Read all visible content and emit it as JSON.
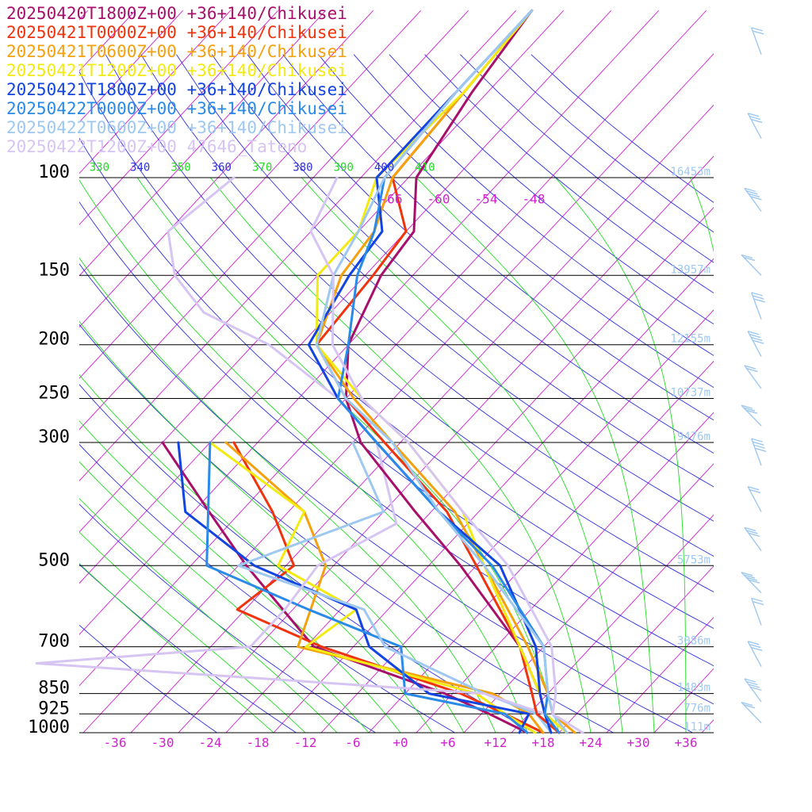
{
  "chart_data": {
    "type": "line",
    "legend": {
      "placement": "top-left",
      "entries": [
        {
          "label": "20250420T1800Z+00 +36+140/Chikusei",
          "color": "#a80f6a"
        },
        {
          "label": "20250421T0000Z+00 +36+140/Chikusei",
          "color": "#f0330c"
        },
        {
          "label": "20250421T0600Z+00 +36+140/Chikusei",
          "color": "#f5a00d"
        },
        {
          "label": "20250421T1200Z+00 +36+140/Chikusei",
          "color": "#f2ea10"
        },
        {
          "label": "20250421T1800Z+00 +36+140/Chikusei",
          "color": "#1244e0"
        },
        {
          "label": "20250422T0000Z+00 +36+140/Chikusei",
          "color": "#2a8ae8"
        },
        {
          "label": "20250422T0600Z+00 +36+140/Chikusei",
          "color": "#9ec8f0"
        },
        {
          "label": "20250422T1200Z+00 47646_Tateno",
          "color": "#d6c4f2"
        }
      ]
    },
    "x_axis": {
      "unit": "degC",
      "tick_values": [
        -36,
        -30,
        -24,
        -18,
        -12,
        -6,
        0,
        6,
        12,
        18,
        24,
        30,
        36
      ],
      "tick_labels": [
        "-36",
        "-30",
        "-24",
        "-18",
        "-12",
        "-6",
        "+0",
        "+6",
        "+12",
        "+18",
        "+24",
        "+30",
        "+36"
      ]
    },
    "y_axis": {
      "unit": "hPa",
      "scale": "log",
      "range": [
        1000,
        100
      ],
      "ticks": [
        {
          "p": 100,
          "label": "100",
          "height": "16453m"
        },
        {
          "p": 150,
          "label": "150",
          "height": "13957m"
        },
        {
          "p": 200,
          "label": "200",
          "height": "12155m"
        },
        {
          "p": 250,
          "label": "250",
          "height": "10737m"
        },
        {
          "p": 300,
          "label": "300",
          "height": "9476m"
        },
        {
          "p": 500,
          "label": "500",
          "height": "5753m"
        },
        {
          "p": 700,
          "label": "700",
          "height": "3086m"
        },
        {
          "p": 850,
          "label": "850",
          "height": "1483m"
        },
        {
          "p": 925,
          "label": "925",
          "height": "776m"
        },
        {
          "p": 1000,
          "label": "1000",
          "height": "111m"
        }
      ]
    },
    "isotherm_labels": {
      "values": [
        -66,
        -60,
        -54,
        -48
      ],
      "labels": [
        "-66",
        "-60",
        "-54",
        "-48"
      ],
      "pressure": 112
    },
    "theta_labels": {
      "values": [
        310,
        320,
        330,
        340,
        350,
        360,
        370,
        380,
        390,
        400,
        410
      ],
      "labels": [
        "310",
        "320",
        "330",
        "340",
        "350",
        "360",
        "370",
        "380",
        "390",
        "400",
        "410"
      ],
      "pressure": 97
    },
    "colors": {
      "isotherm": "#d020d0",
      "dry_adiabat": "#3030e0",
      "moist_adiabat": "#22dd22",
      "isobar": "#000000",
      "height_label": "#9ec8f0",
      "axis_label": "#d020d0"
    },
    "temperature_profiles": [
      {
        "name": "20250420T1800Z+00 +36+140/Chikusei",
        "color": "#a80f6a",
        "p": [
          1000,
          925,
          850,
          700,
          500,
          400,
          300,
          250,
          200,
          150,
          125,
          100,
          70,
          50
        ],
        "t": [
          20,
          16,
          13,
          5,
          -12,
          -24,
          -39,
          -46,
          -52,
          -56,
          -57,
          -63,
          -66,
          -68
        ]
      },
      {
        "name": "20250421T0000Z+00 +36+140/Chikusei",
        "color": "#f0330c",
        "p": [
          1000,
          925,
          850,
          700,
          500,
          400,
          300,
          250,
          200,
          150,
          125,
          100,
          70,
          50
        ],
        "t": [
          20,
          15,
          12,
          5,
          -10,
          -20,
          -36,
          -46,
          -56,
          -57,
          -58,
          -66,
          -67,
          -68
        ]
      },
      {
        "name": "20250421T0600Z+00 +36+140/Chikusei",
        "color": "#f5a00d",
        "p": [
          1000,
          925,
          850,
          700,
          500,
          400,
          300,
          250,
          200,
          150,
          125,
          100,
          70,
          50
        ],
        "t": [
          22,
          17,
          14,
          6,
          -9,
          -19,
          -35,
          -45,
          -56,
          -61,
          -62,
          -66,
          -67,
          -68
        ]
      },
      {
        "name": "20250421T1200Z+00 +36+140/Chikusei",
        "color": "#f2ea10",
        "p": [
          1000,
          925,
          850,
          700,
          500,
          400,
          300,
          250,
          200,
          150,
          125,
          100,
          70,
          50
        ],
        "t": [
          21,
          16,
          13,
          5,
          -9,
          -18,
          -33,
          -44,
          -56,
          -64,
          -64,
          -68,
          -67,
          -68
        ]
      },
      {
        "name": "20250421T1800Z+00 +36+140/Chikusei",
        "color": "#1244e0",
        "p": [
          1000,
          925,
          850,
          700,
          500,
          400,
          300,
          250,
          200,
          150,
          125,
          100,
          70,
          50
        ],
        "t": [
          19,
          16,
          13,
          7,
          -7,
          -21,
          -37,
          -47,
          -57,
          -60,
          -61,
          -68,
          -68,
          -68
        ]
      },
      {
        "name": "20250422T0000Z+00 +36+140/Chikusei",
        "color": "#2a8ae8",
        "p": [
          1000,
          925,
          850,
          700,
          500,
          400,
          300,
          250,
          200,
          150,
          125,
          100,
          70,
          50
        ],
        "t": [
          20,
          16,
          14,
          8,
          -8,
          -21,
          -37,
          -47,
          -52,
          -59,
          -62,
          -67,
          -68,
          -68
        ]
      },
      {
        "name": "20250422T0600Z+00 +36+140/Chikusei",
        "color": "#9ec8f0",
        "p": [
          1000,
          925,
          850,
          700,
          500,
          400,
          300,
          250,
          200,
          150,
          125,
          100,
          70,
          50
        ],
        "t": [
          21,
          17,
          14,
          8,
          -9,
          -21,
          -35,
          -46,
          -56,
          -62,
          -64,
          -67,
          -68,
          -68
        ]
      },
      {
        "name": "20250422T1200Z+00 47646_Tateno",
        "color": "#d6c4f2",
        "p": [
          1000,
          925,
          850,
          700,
          500,
          400,
          300,
          250,
          200,
          150,
          125,
          100
        ],
        "t": [
          23,
          17,
          15,
          9,
          -6,
          -18,
          -33,
          -44,
          -54,
          -62,
          -70,
          -73
        ]
      }
    ],
    "dewpoint_profiles": [
      {
        "name": "20250420T1800Z+00 +36+140/Chikusei",
        "color": "#a80f6a",
        "p": [
          1000,
          925,
          850,
          700,
          500,
          400,
          300
        ],
        "t": [
          16,
          9,
          1,
          -21,
          -39,
          -50,
          -64
        ]
      },
      {
        "name": "20250421T0000Z+00 +36+140/Chikusei",
        "color": "#f0330c",
        "p": [
          1000,
          925,
          850,
          700,
          600,
          500,
          400,
          300
        ],
        "t": [
          18,
          11,
          3,
          -20,
          -35,
          -33,
          -42,
          -55
        ]
      },
      {
        "name": "20250421T0600Z+00 +36+140/Chikusei",
        "color": "#f5a00d",
        "p": [
          1000,
          925,
          850,
          700,
          500,
          400,
          300
        ],
        "t": [
          18,
          14,
          7,
          -23,
          -29,
          -38,
          -56
        ]
      },
      {
        "name": "20250421T1200Z+00 +36+140/Chikusei",
        "color": "#f2ea10",
        "p": [
          1000,
          925,
          850,
          700,
          600,
          500,
          400,
          300
        ],
        "t": [
          17,
          11,
          5,
          -22,
          -20,
          -35,
          -38,
          -58
        ]
      },
      {
        "name": "20250421T1800Z+00 +36+140/Chikusei",
        "color": "#1244e0",
        "p": [
          1000,
          925,
          850,
          700,
          600,
          500,
          400,
          300
        ],
        "t": [
          15,
          14,
          -1,
          -14,
          -20,
          -38,
          -53,
          -62
        ]
      },
      {
        "name": "20250422T0000Z+00 +36+140/Chikusei",
        "color": "#2a8ae8",
        "p": [
          1000,
          925,
          850,
          700,
          600,
          500,
          300
        ],
        "t": [
          16,
          11,
          -4,
          -10,
          -26,
          -44,
          -58
        ]
      },
      {
        "name": "20250422T0600Z+00 +36+140/Chikusei",
        "color": "#9ec8f0",
        "p": [
          1000,
          925,
          850,
          700,
          600,
          500,
          400,
          300
        ],
        "t": [
          19,
          15,
          6,
          -12,
          -19,
          -40,
          -28,
          -40
        ]
      },
      {
        "name": "20250422T1200Z+00 47646_Tateno",
        "color": "#d6c4f2",
        "p": [
          1000,
          925,
          850,
          750,
          700,
          600,
          500,
          420,
          300,
          250,
          200,
          175,
          150,
          125,
          100
        ],
        "t": [
          21,
          16,
          6,
          -54,
          -29,
          -29,
          -30,
          -25,
          -37,
          -47,
          -62,
          -74,
          -82,
          -88,
          -86
        ]
      }
    ]
  }
}
